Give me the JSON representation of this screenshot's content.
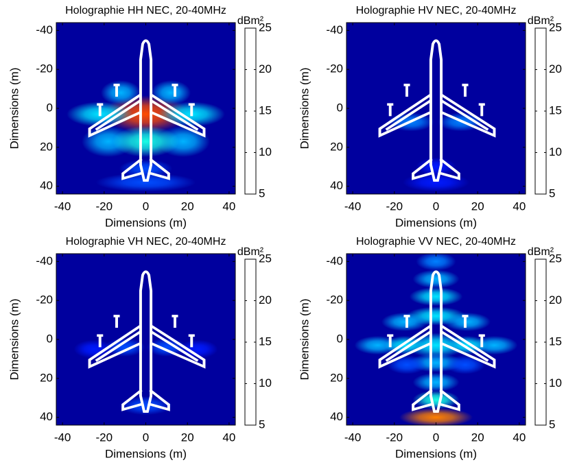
{
  "chart_data": [
    {
      "type": "heatmap",
      "title": "Holographie HH NEC, 20-40MHz",
      "xlabel": "Dimensions (m)",
      "ylabel": "Dimensions (m)",
      "xlim": [
        -43,
        43
      ],
      "ylim": [
        -44,
        44
      ],
      "y_reversed": true,
      "xticks": [
        -40,
        -20,
        0,
        20,
        40
      ],
      "yticks": [
        -40,
        -20,
        0,
        20,
        40
      ],
      "colorbar_label": "dBm²",
      "clim": [
        5,
        25
      ],
      "cticks": [
        5,
        10,
        15,
        20,
        25
      ],
      "colormap": "jet",
      "blobs": [
        {
          "x": 0,
          "y": 3,
          "rx": 13,
          "ry": 6,
          "value": 21
        },
        {
          "x": -22,
          "y": 3,
          "rx": 10,
          "ry": 4,
          "value": 12
        },
        {
          "x": 22,
          "y": 3,
          "rx": 10,
          "ry": 4,
          "value": 12
        },
        {
          "x": -12,
          "y": -8,
          "rx": 6,
          "ry": 4,
          "value": 11
        },
        {
          "x": 12,
          "y": -8,
          "rx": 6,
          "ry": 4,
          "value": 11
        },
        {
          "x": -18,
          "y": 17,
          "rx": 8,
          "ry": 5,
          "value": 11
        },
        {
          "x": 18,
          "y": 17,
          "rx": 8,
          "ry": 5,
          "value": 11
        },
        {
          "x": 0,
          "y": 17,
          "rx": 10,
          "ry": 5,
          "value": 13
        },
        {
          "x": 0,
          "y": 31,
          "rx": 8,
          "ry": 3,
          "value": 9
        },
        {
          "x": 0,
          "y": 38,
          "rx": 15,
          "ry": 3,
          "value": 9
        }
      ]
    },
    {
      "type": "heatmap",
      "title": "Holographie HV NEC, 20-40MHz",
      "xlabel": "Dimensions (m)",
      "ylabel": "Dimensions (m)",
      "xlim": [
        -43,
        43
      ],
      "ylim": [
        -44,
        44
      ],
      "y_reversed": true,
      "xticks": [
        -40,
        -20,
        0,
        20,
        40
      ],
      "yticks": [
        -40,
        -20,
        0,
        20,
        40
      ],
      "colorbar_label": "dBm²",
      "clim": [
        5,
        25
      ],
      "cticks": [
        5,
        10,
        15,
        20,
        25
      ],
      "colormap": "jet",
      "blobs": [
        {
          "x": -12,
          "y": 7,
          "rx": 7,
          "ry": 3,
          "value": 10
        },
        {
          "x": 12,
          "y": 7,
          "rx": 7,
          "ry": 3,
          "value": 10
        },
        {
          "x": 0,
          "y": 30,
          "rx": 6,
          "ry": 3,
          "value": 8
        },
        {
          "x": 0,
          "y": 38,
          "rx": 10,
          "ry": 3,
          "value": 8
        }
      ]
    },
    {
      "type": "heatmap",
      "title": "Holographie VH NEC, 20-40MHz",
      "xlabel": "Dimensions (m)",
      "ylabel": "Dimensions (m)",
      "xlim": [
        -43,
        43
      ],
      "ylim": [
        -44,
        44
      ],
      "y_reversed": true,
      "xticks": [
        -40,
        -20,
        0,
        20,
        40
      ],
      "yticks": [
        -40,
        -20,
        0,
        20,
        40
      ],
      "colorbar_label": "dBm²",
      "clim": [
        5,
        25
      ],
      "cticks": [
        5,
        10,
        15,
        20,
        25
      ],
      "colormap": "jet",
      "blobs": [
        {
          "x": -25,
          "y": 5,
          "rx": 6,
          "ry": 3,
          "value": 8
        },
        {
          "x": -10,
          "y": 4,
          "rx": 6,
          "ry": 3,
          "value": 9
        },
        {
          "x": 10,
          "y": 4,
          "rx": 6,
          "ry": 3,
          "value": 9
        },
        {
          "x": 25,
          "y": 5,
          "rx": 6,
          "ry": 3,
          "value": 8
        },
        {
          "x": 0,
          "y": 34,
          "rx": 8,
          "ry": 3,
          "value": 9
        }
      ]
    },
    {
      "type": "heatmap",
      "title": "Holographie VV NEC, 20-40MHz",
      "xlabel": "Dimensions (m)",
      "ylabel": "Dimensions (m)",
      "xlim": [
        -43,
        43
      ],
      "ylim": [
        -44,
        44
      ],
      "y_reversed": true,
      "xticks": [
        -40,
        -20,
        0,
        20,
        40
      ],
      "yticks": [
        -40,
        -20,
        0,
        20,
        40
      ],
      "colorbar_label": "dBm²",
      "clim": [
        5,
        25
      ],
      "cticks": [
        5,
        10,
        15,
        20,
        25
      ],
      "colormap": "jet",
      "blobs": [
        {
          "x": 0,
          "y": -40,
          "rx": 6,
          "ry": 3,
          "value": 10
        },
        {
          "x": 0,
          "y": -31,
          "rx": 7,
          "ry": 3,
          "value": 11
        },
        {
          "x": 0,
          "y": -22,
          "rx": 8,
          "ry": 3,
          "value": 12
        },
        {
          "x": 0,
          "y": -12,
          "rx": 9,
          "ry": 3,
          "value": 12
        },
        {
          "x": 0,
          "y": 3,
          "rx": 9,
          "ry": 4,
          "value": 12
        },
        {
          "x": 0,
          "y": 12,
          "rx": 8,
          "ry": 3,
          "value": 11
        },
        {
          "x": 0,
          "y": 22,
          "rx": 7,
          "ry": 3,
          "value": 11
        },
        {
          "x": 0,
          "y": 31,
          "rx": 7,
          "ry": 3,
          "value": 13
        },
        {
          "x": 0,
          "y": 40,
          "rx": 11,
          "ry": 3,
          "value": 20
        },
        {
          "x": -15,
          "y": -9,
          "rx": 7,
          "ry": 3,
          "value": 11
        },
        {
          "x": 15,
          "y": -9,
          "rx": 7,
          "ry": 3,
          "value": 11
        },
        {
          "x": -28,
          "y": 3,
          "rx": 7,
          "ry": 3,
          "value": 11
        },
        {
          "x": 28,
          "y": 3,
          "rx": 7,
          "ry": 3,
          "value": 11
        },
        {
          "x": -15,
          "y": 3,
          "rx": 6,
          "ry": 3,
          "value": 12
        },
        {
          "x": 15,
          "y": 3,
          "rx": 6,
          "ry": 3,
          "value": 12
        },
        {
          "x": -14,
          "y": 13,
          "rx": 6,
          "ry": 3,
          "value": 9
        },
        {
          "x": 14,
          "y": 13,
          "rx": 6,
          "ry": 3,
          "value": 9
        }
      ]
    }
  ]
}
